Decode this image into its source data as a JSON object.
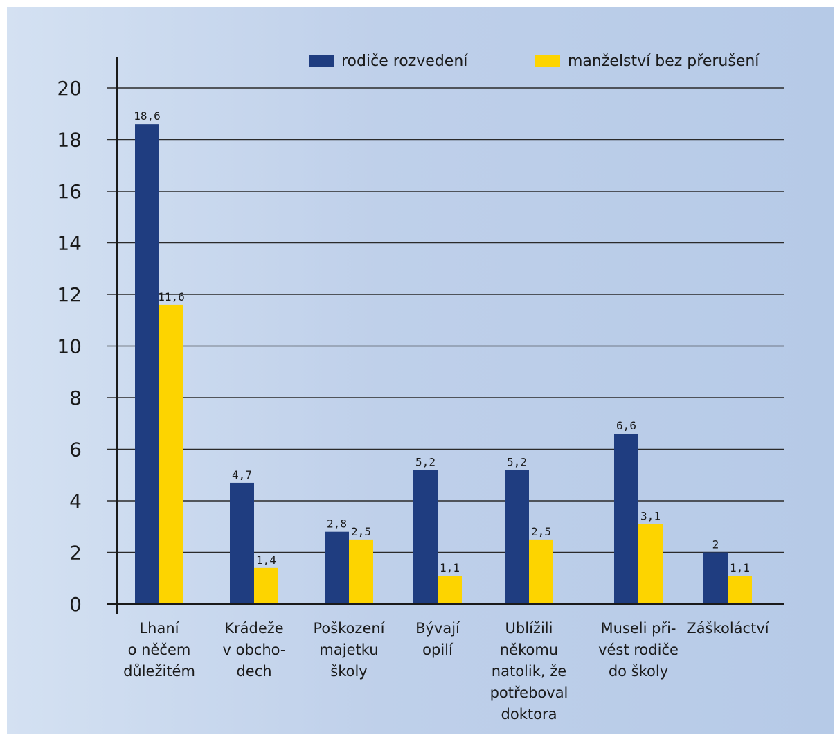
{
  "chart_data": {
    "type": "bar",
    "categories": [
      [
        "Lhaní",
        "o něčem",
        "důležitém"
      ],
      [
        "Krádeže",
        "v obcho-",
        "dech"
      ],
      [
        "Poškození",
        "majetku",
        "školy"
      ],
      [
        "Bývají",
        "opilí"
      ],
      [
        "Ublížili",
        "někomu",
        "natolik, že",
        "potřeboval",
        "doktora"
      ],
      [
        "Museli při-",
        "vést rodiče",
        "do školy"
      ],
      [
        "Záškoláctví"
      ]
    ],
    "series": [
      {
        "name": "rodiče rozvedení",
        "color": "#1f3d80",
        "values": [
          18.6,
          4.7,
          2.8,
          5.2,
          5.2,
          6.6,
          2
        ],
        "labels": [
          "18,6",
          "4,7",
          "2,8",
          "5,2",
          "5,2",
          "6,6",
          "2"
        ]
      },
      {
        "name": "manželství bez přerušení",
        "color": "#fdd400",
        "values": [
          11.6,
          1.4,
          2.5,
          1.1,
          2.5,
          3.1,
          1.1
        ],
        "labels": [
          "11,6",
          "1,4",
          "2,5",
          "1,1",
          "2,5",
          "3,1",
          "1,1"
        ]
      }
    ],
    "yticks": [
      "0",
      "2",
      "4",
      "6",
      "8",
      "10",
      "12",
      "14",
      "16",
      "18",
      "20"
    ],
    "ylim": [
      0,
      20
    ],
    "grid": true,
    "legend_position": "top-right"
  }
}
